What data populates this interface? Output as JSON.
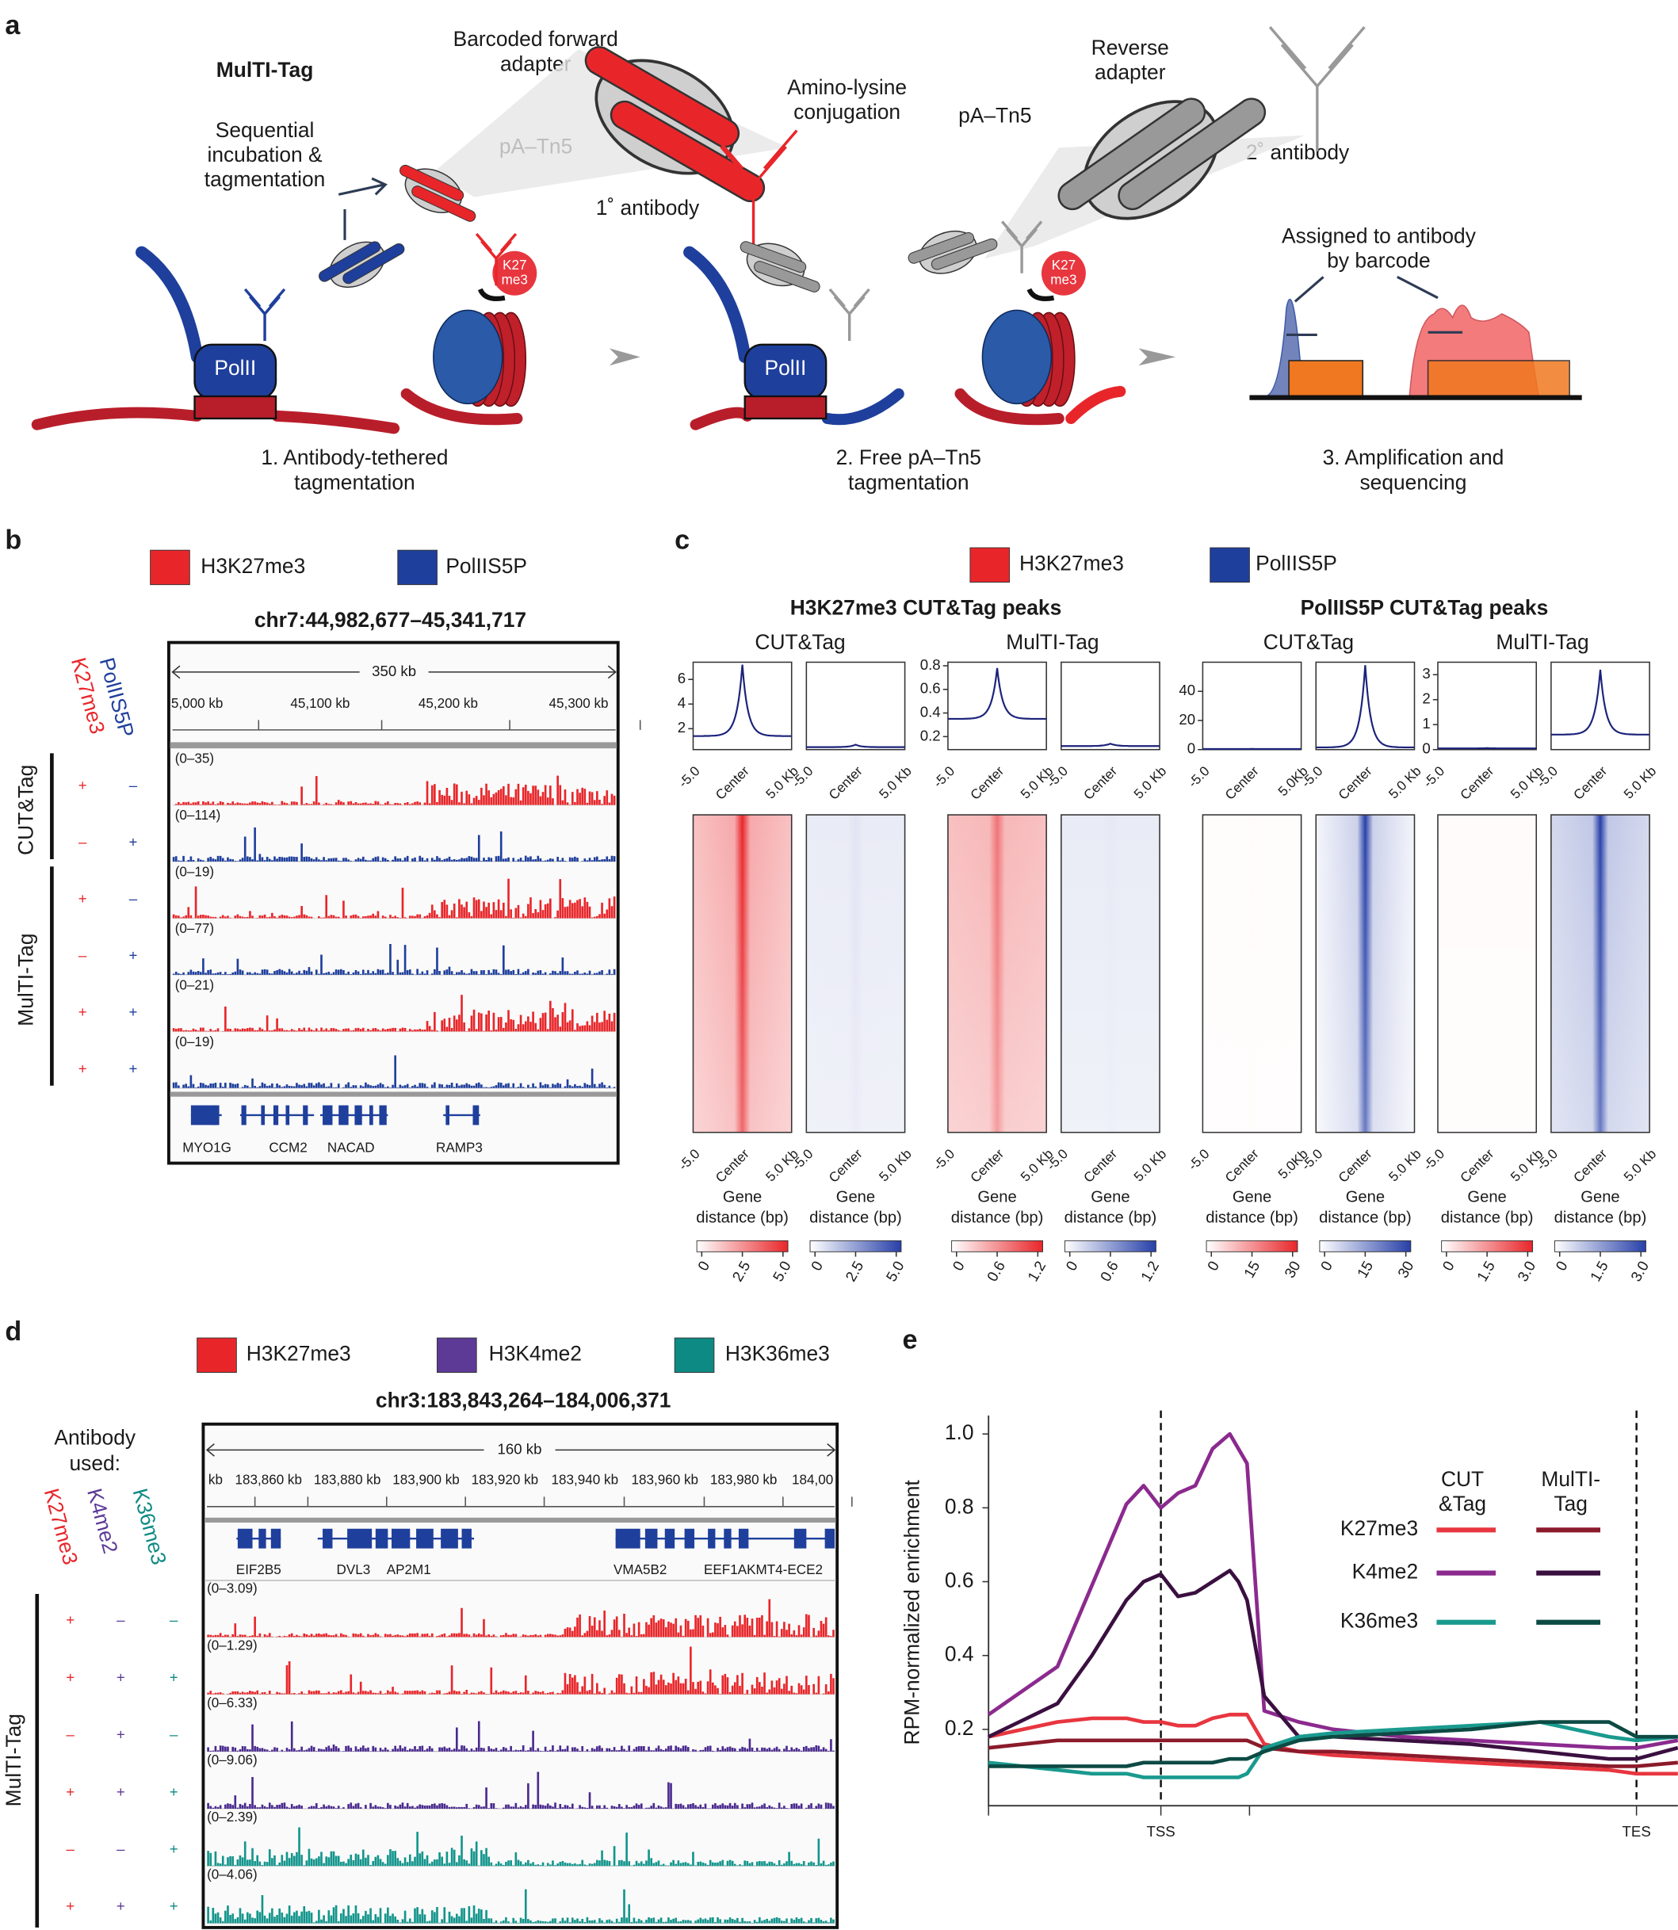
{
  "panel_a": {
    "letter": "a",
    "title": "MulTI-Tag",
    "sequential": [
      "Sequential",
      "incubation &",
      "tagmentation"
    ],
    "fwd_adapter": [
      "Barcoded forward",
      "adapter"
    ],
    "pa_tn5_1": "pA–Tn5",
    "conjugation": [
      "Amino-lysine",
      "conjugation"
    ],
    "primary": "1˚ antibody",
    "rev_adapter": [
      "Reverse",
      "adapter"
    ],
    "pa_tn5_2": "pA–Tn5",
    "secondary": "2˚ antibody",
    "polii": [
      "PolII",
      "PolII"
    ],
    "k27": [
      [
        "K27",
        "me3"
      ],
      [
        "K27",
        "me3"
      ]
    ],
    "assigned": [
      "Assigned to antibody",
      "by barcode"
    ],
    "steps": [
      [
        "1. Antibody-tethered",
        "tagmentation"
      ],
      [
        "2. Free pA–Tn5",
        "tagmentation"
      ],
      [
        "3. Amplification and",
        "sequencing"
      ]
    ]
  },
  "panel_b": {
    "letter": "b",
    "legend": [
      {
        "name": "H3K27me3",
        "color": "#e8262a"
      },
      {
        "name": "PolIIS5P",
        "color": "#1f3f9c"
      }
    ],
    "locus": "chr7:44,982,677–45,341,717",
    "columns": [
      {
        "name": "K27me3",
        "color": "#e8262a"
      },
      {
        "name": "PolIIS5P",
        "color": "#1f3f9c"
      }
    ],
    "scale": "350 kb",
    "coords": [
      "5,000 kb",
      "45,100 kb",
      "45,200 kb",
      "45,300 kb"
    ],
    "groups": [
      {
        "name": "CUT&Tag",
        "tracks": [
          {
            "signs": [
              "+",
              "–"
            ],
            "range": "(0–35)",
            "color": "#e8262a"
          },
          {
            "signs": [
              "–",
              "+"
            ],
            "range": "(0–114)",
            "color": "#1f3f9c"
          }
        ]
      },
      {
        "name": "MulTI-Tag",
        "tracks": [
          {
            "signs": [
              "+",
              "–"
            ],
            "range": "(0–19)",
            "color": "#e8262a"
          },
          {
            "signs": [
              "–",
              "+"
            ],
            "range": "(0–77)",
            "color": "#1f3f9c"
          },
          {
            "signs": [
              "+",
              "+"
            ],
            "range": "(0–21)",
            "color": "#e8262a"
          },
          {
            "signs": [
              "+",
              "+"
            ],
            "range": "(0–19)",
            "color": "#1f3f9c"
          }
        ]
      }
    ],
    "genes": [
      "MYO1G",
      "CCM2",
      "NACAD",
      "RAMP3"
    ]
  },
  "panel_c": {
    "letter": "c",
    "legend": [
      {
        "name": "H3K27me3",
        "color": "#e8262a"
      },
      {
        "name": "PolIIS5P",
        "color": "#1f3f9c"
      }
    ],
    "groups": [
      {
        "title": "H3K27me3 CUT&Tag peaks",
        "methods": [
          "CUT&Tag",
          "MulTI-Tag"
        ]
      },
      {
        "title": "PolIIS5P CUT&Tag peaks",
        "methods": [
          "CUT&Tag",
          "MulTI-Tag"
        ]
      }
    ],
    "plots": [
      {
        "color": "#e8262a",
        "ylim": [
          0.3,
          7.4
        ],
        "yticks": [
          2,
          4,
          6
        ],
        "edge": 1.4,
        "peak": 7.2,
        "xticks": [
          "-5.0",
          "Center",
          "5.0 Kb"
        ],
        "xlabel": [
          "Gene",
          "distance (bp)"
        ],
        "cbar": [
          0,
          2.5,
          {
            "value": 5,
            "label": "5.0"
          }
        ]
      },
      {
        "color": "#2740a8",
        "ylim": [
          0.3,
          7.4
        ],
        "edge": 0.5,
        "peak": 0.7,
        "xticks": [
          "-5.0",
          "Center",
          "5.0 Kb"
        ],
        "xlabel": [
          "Gene",
          "distance (bp)"
        ],
        "cbar": [
          0,
          2.5,
          {
            "value": 5,
            "label": "5.0"
          }
        ]
      },
      {
        "color": "#e8262a",
        "ylim": [
          0.09,
          0.83
        ],
        "yticks": [
          0.2,
          0.4,
          0.6,
          0.8
        ],
        "edge": 0.35,
        "peak": 0.78,
        "xticks": [
          "-5.0",
          "Center",
          "5.0 Kb"
        ],
        "xlabel": [
          "Gene",
          "distance (bp)"
        ],
        "cbar": [
          0,
          0.6,
          1.2
        ]
      },
      {
        "color": "#2740a8",
        "ylim": [
          0.09,
          0.83
        ],
        "edge": 0.12,
        "peak": 0.14,
        "xticks": [
          "-5.0",
          "Center",
          "5.0 Kb"
        ],
        "xlabel": [
          "Gene",
          "distance (bp)"
        ],
        "cbar": [
          0,
          0.6,
          1.2
        ]
      },
      {
        "color": "#e8262a",
        "ylim": [
          0,
          60
        ],
        "yticks": [
          0,
          20,
          40
        ],
        "edge": 0.4,
        "peak": 0.5,
        "xticks": [
          "-5.0",
          "Center",
          "5.0Kb"
        ],
        "xlabel": [
          "Gene",
          "distance (bp)"
        ],
        "cbar": [
          0,
          15,
          30
        ]
      },
      {
        "color": "#2740a8",
        "ylim": [
          0,
          60
        ],
        "edge": 1.5,
        "peak": 58,
        "xticks": [
          "-5.0",
          "Center",
          "5.0 Kb"
        ],
        "xlabel": [
          "Gene",
          "distance (bp)"
        ],
        "cbar": [
          0,
          15,
          30
        ]
      },
      {
        "color": "#e8262a",
        "ylim": [
          0,
          3.5
        ],
        "yticks": [
          0,
          1,
          2,
          3
        ],
        "edge": 0.05,
        "peak": 0.06,
        "xticks": [
          "-5.0",
          "Center",
          "5.0 Kb"
        ],
        "xlabel": [
          "Gene",
          "distance (bp)"
        ],
        "cbar": [
          0,
          1.5,
          {
            "value": 3,
            "label": "3.0"
          }
        ]
      },
      {
        "color": "#2740a8",
        "ylim": [
          0,
          3.5
        ],
        "edge": 0.6,
        "peak": 3.2,
        "xticks": [
          "-5.0",
          "Center",
          "5.0 Kb"
        ],
        "xlabel": [
          "Gene",
          "distance (bp)"
        ],
        "cbar": [
          0,
          1.5,
          {
            "value": 3,
            "label": "3.0"
          }
        ]
      }
    ]
  },
  "panel_d": {
    "letter": "d",
    "legend": [
      {
        "name": "H3K27me3",
        "color": "#e8262a"
      },
      {
        "name": "H3K4me2",
        "color": "#5c3a96"
      },
      {
        "name": "H3K36me3",
        "color": "#0e8a84"
      }
    ],
    "locus": "chr3:183,843,264–184,006,371",
    "antibody_used": [
      "Antibody",
      "used:"
    ],
    "columns": [
      {
        "name": "K27me3",
        "color": "#e8262a"
      },
      {
        "name": "K4me2",
        "color": "#5c3a96"
      },
      {
        "name": "K36me3",
        "color": "#0e8a84"
      }
    ],
    "group": "MulTI-Tag",
    "scale": "160 kb",
    "coords": [
      "kb",
      "183,860 kb",
      "183,880 kb",
      "183,900 kb",
      "183,920 kb",
      "183,940 kb",
      "183,960 kb",
      "183,980 kb",
      "184,00"
    ],
    "genes": [
      "EIF2B5",
      "DVL3",
      "AP2M1",
      "VMA5B2",
      "EEF1AKMT4-ECE2"
    ],
    "tracks": [
      {
        "signs": [
          "+",
          "–",
          "–"
        ],
        "range": "(0–3.09)",
        "color": "#e8262a"
      },
      {
        "signs": [
          "+",
          "+",
          "+"
        ],
        "range": "(0–1.29)",
        "color": "#e8262a"
      },
      {
        "signs": [
          "–",
          "+",
          "–"
        ],
        "range": "(0–6.33)",
        "color": "#4a2a8e"
      },
      {
        "signs": [
          "+",
          "+",
          "+"
        ],
        "range": "(0–9.06)",
        "color": "#4a2a8e"
      },
      {
        "signs": [
          "–",
          "–",
          "+"
        ],
        "range": "(0–2.39)",
        "color": "#13958c"
      },
      {
        "signs": [
          "+",
          "+",
          "+"
        ],
        "range": "(0–4.06)",
        "color": "#13958c"
      }
    ]
  },
  "panel_e": {
    "letter": "e",
    "chart_data": {
      "type": "line",
      "ylabel": "RPM-normalized enrichment",
      "ylim": [
        0,
        1.05
      ],
      "yticks": [
        0.2,
        0.4,
        0.6,
        0.8,
        {
          "value": 1,
          "label": "1.0"
        }
      ],
      "xlim": [
        0,
        40
      ],
      "xticks": [
        {
          "value": 10,
          "label": "TSS"
        },
        {
          "value": 37.6,
          "label": "TES"
        }
      ],
      "x": [
        0,
        4,
        6,
        8,
        9,
        10,
        11,
        12,
        13,
        14,
        14.5,
        15,
        16,
        18,
        20,
        24,
        28,
        32,
        36,
        37.6,
        40
      ],
      "legend_columns": [
        [
          "CUT",
          "&Tag"
        ],
        [
          "MulTI-",
          "Tag"
        ]
      ],
      "groups": [
        {
          "name": "K27me3",
          "series": [
            {
              "color": "#e8363f",
              "values": [
                0.18,
                0.22,
                0.23,
                0.23,
                0.22,
                0.22,
                0.21,
                0.21,
                0.23,
                0.24,
                0.24,
                0.24,
                0.16,
                0.14,
                0.13,
                0.12,
                0.11,
                0.1,
                0.09,
                0.08,
                0.08
              ]
            },
            {
              "color": "#8b1a2a",
              "values": [
                0.15,
                0.17,
                0.17,
                0.17,
                0.17,
                0.17,
                0.17,
                0.17,
                0.17,
                0.17,
                0.17,
                0.17,
                0.15,
                0.14,
                0.14,
                0.13,
                0.12,
                0.11,
                0.1,
                0.1,
                0.11
              ]
            }
          ]
        },
        {
          "name": "K4me2",
          "series": [
            {
              "color": "#8b2a8e",
              "values": [
                0.24,
                0.37,
                0.59,
                0.81,
                0.86,
                0.8,
                0.84,
                0.86,
                0.96,
                1.0,
                0.96,
                0.92,
                0.25,
                0.22,
                0.2,
                0.18,
                0.17,
                0.16,
                0.15,
                0.15,
                0.17
              ]
            },
            {
              "color": "#3a1040",
              "values": [
                0.18,
                0.27,
                0.4,
                0.55,
                0.6,
                0.62,
                0.56,
                0.57,
                0.6,
                0.63,
                0.6,
                0.55,
                0.29,
                0.18,
                0.18,
                0.17,
                0.16,
                0.14,
                0.12,
                0.12,
                0.15
              ]
            }
          ]
        },
        {
          "name": "K36me3",
          "series": [
            {
              "color": "#1a9a8e",
              "values": [
                0.11,
                0.09,
                0.08,
                0.08,
                0.07,
                0.07,
                0.07,
                0.07,
                0.07,
                0.07,
                0.07,
                0.08,
                0.15,
                0.18,
                0.19,
                0.2,
                0.21,
                0.22,
                0.18,
                0.17,
                0.18
              ]
            },
            {
              "color": "#0d4a44",
              "values": [
                0.1,
                0.1,
                0.1,
                0.1,
                0.11,
                0.11,
                0.11,
                0.11,
                0.11,
                0.12,
                0.12,
                0.12,
                0.14,
                0.17,
                0.18,
                0.19,
                0.2,
                0.22,
                0.22,
                0.18,
                0.18
              ]
            }
          ]
        }
      ]
    }
  }
}
